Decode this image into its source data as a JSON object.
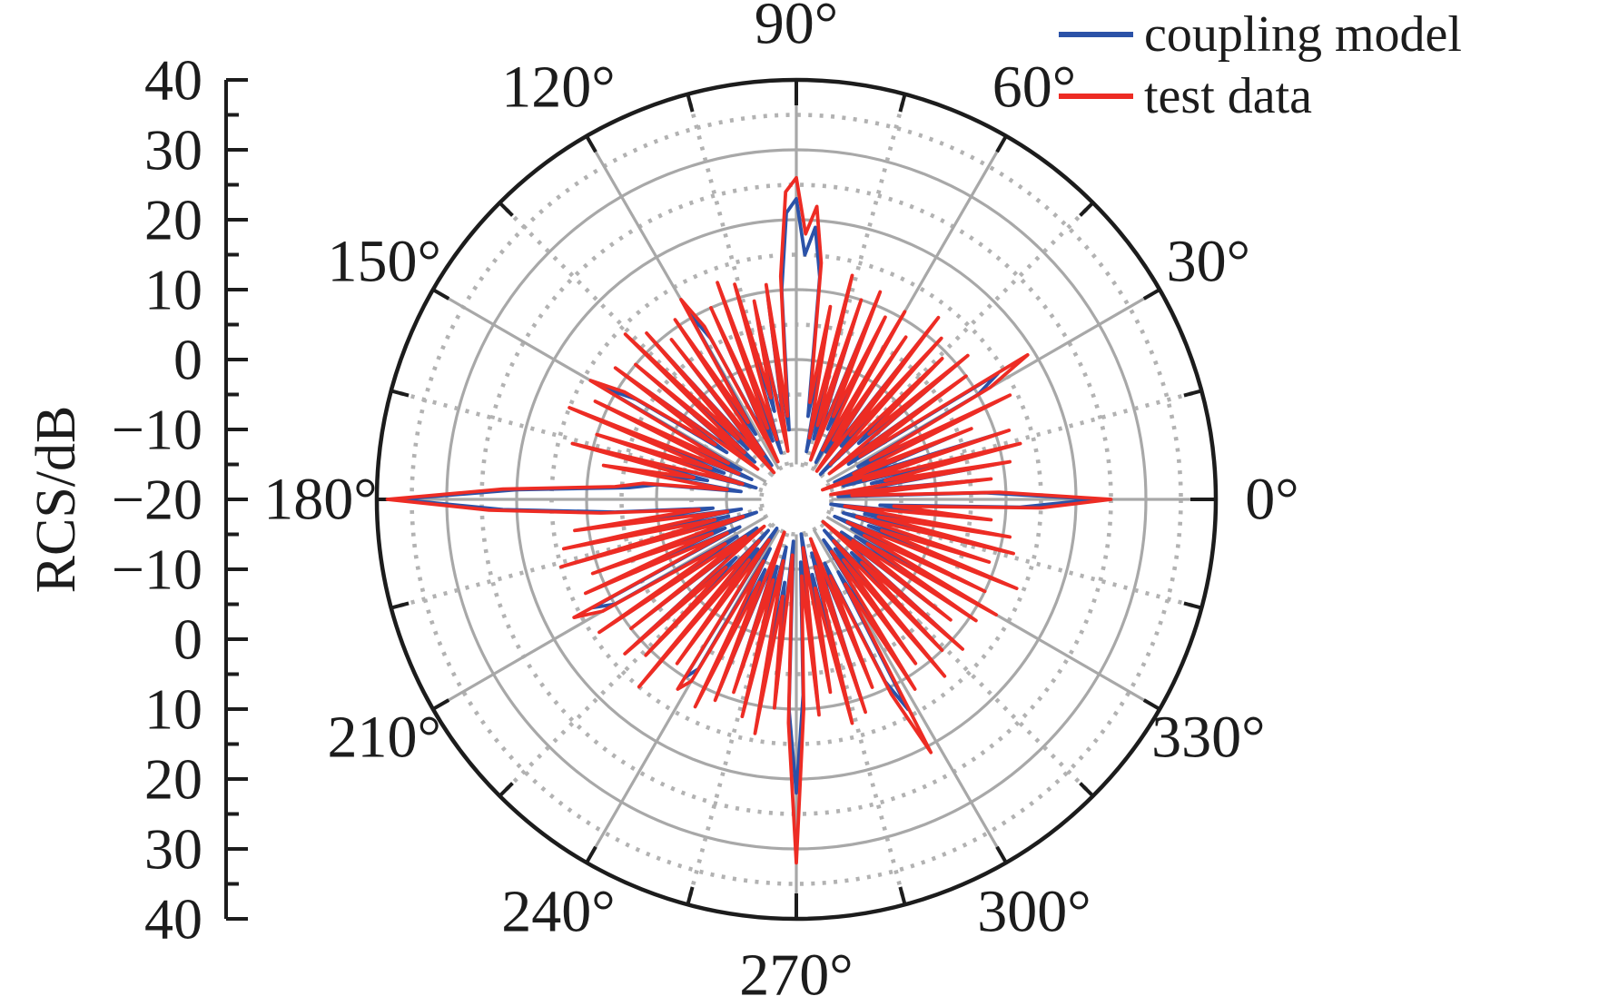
{
  "figure": {
    "background": "#ffffff"
  },
  "left_axis": {
    "label": "RCS/dB",
    "tick_labels": [
      "40",
      "30",
      "20",
      "10",
      "0",
      "−10",
      "−20",
      "−10",
      "0",
      "10",
      "20",
      "30",
      "40"
    ],
    "major_step_db": 10,
    "minor_step_db": 5
  },
  "polar": {
    "angle_labels": [
      "0°",
      "30°",
      "60°",
      "90°",
      "120°",
      "150°",
      "180°",
      "210°",
      "240°",
      "270°",
      "300°",
      "330°"
    ],
    "angle_tick_step_deg": 15,
    "spoke_solid_step_deg": 30,
    "spoke_dotted_step_deg": 15
  },
  "legend": {
    "items": [
      {
        "label": "coupling model",
        "color": "#2b52a8"
      },
      {
        "label": "test data",
        "color": "#ed2c24"
      }
    ]
  },
  "colors": {
    "grid_solid": "#a8a8a8",
    "grid_dotted": "#b2b2b2",
    "outline": "#1c1c1c",
    "text": "#1c1c1c",
    "series_blue": "#2b52a8",
    "series_red": "#ed2c24"
  },
  "chart_data": {
    "type": "line",
    "projection": "polar",
    "title": "",
    "radial_axis_label": "RCS/dB",
    "radial_range_db": [
      -20,
      40
    ],
    "radial_major_step_db": 10,
    "radial_minor_step_db": 5,
    "inner_hole_db": -15,
    "angle_start_deg": 0,
    "angle_step_deg": 2,
    "legend_position": "top-right",
    "grid": {
      "solid_circles_db": [
        -10,
        0,
        10,
        20,
        30
      ],
      "dotted_circles_db": [
        -15,
        -5,
        5,
        15,
        25,
        35
      ],
      "outer_circle_db": 40,
      "spokes_deg_step": 15
    },
    "series": [
      {
        "name": "coupling model",
        "color": "#2b52a8",
        "values": [
          23,
          7,
          -14,
          6,
          -12,
          9,
          -9,
          11,
          -13,
          10,
          -11,
          5,
          -14,
          12,
          -10,
          10,
          14,
          -11,
          8,
          -12,
          10,
          -8,
          7,
          -15,
          9,
          -10,
          11,
          -13,
          6,
          -12,
          9,
          -14,
          7,
          -9,
          10,
          -12,
          8,
          -11,
          11,
          -13,
          6,
          -8,
          12,
          19,
          15,
          23,
          21,
          10,
          -10,
          9,
          -11,
          7,
          -7,
          10,
          -13,
          11,
          -11,
          8,
          -12,
          6,
          11,
          -9,
          9,
          -14,
          7,
          -13,
          10,
          -10,
          12,
          -12,
          8,
          -11,
          10,
          -8,
          7,
          12,
          -11,
          10,
          -13,
          13,
          -9,
          8,
          -14,
          11,
          -7,
          6,
          -12,
          0,
          4,
          20,
          37,
          22,
          6,
          -8,
          10,
          -12,
          12,
          -10,
          13,
          -14,
          9,
          -9,
          11,
          -11,
          13,
          10,
          -10,
          12,
          -13,
          8,
          -12,
          11,
          -8,
          9,
          -14,
          13,
          -11,
          7,
          -15,
          10,
          8,
          -12,
          11,
          -9,
          9,
          -13,
          7,
          -10,
          10,
          -13,
          12,
          -8,
          8,
          -14,
          10,
          22,
          8,
          -11,
          9,
          -15,
          6,
          -9,
          11,
          -12,
          10,
          -12,
          7,
          -10,
          9,
          14,
          -8,
          10,
          -13,
          7,
          -11,
          11,
          -14,
          8,
          -9,
          10,
          -13,
          6,
          -12,
          9,
          -10,
          11,
          -11,
          8,
          -14,
          12,
          -9,
          7,
          -13,
          10,
          -10,
          9,
          -15,
          6,
          -8,
          12
        ]
      },
      {
        "name": "test data",
        "color": "#ed2c24",
        "values": [
          25,
          9,
          -12,
          8,
          -15,
          11,
          -7,
          13,
          -10,
          12,
          -16,
          7,
          -11,
          14,
          -8,
          12,
          19,
          -9,
          10,
          -14,
          12,
          -6,
          9,
          -13,
          11,
          -8,
          13,
          -15,
          8,
          -10,
          11,
          -12,
          9,
          -7,
          12,
          -14,
          10,
          -9,
          13,
          -11,
          8,
          -6,
          14,
          22,
          18,
          26,
          24,
          12,
          -8,
          11,
          -13,
          9,
          -5,
          12,
          -11,
          13,
          -9,
          10,
          -14,
          8,
          13,
          -7,
          11,
          -12,
          9,
          -15,
          12,
          -8,
          14,
          -10,
          10,
          -13,
          12,
          -6,
          9,
          14,
          -9,
          12,
          -11,
          15,
          -7,
          10,
          -12,
          13,
          -5,
          8,
          -10,
          2,
          6,
          22,
          38.5,
          24,
          8,
          -6,
          12,
          -10,
          14,
          -8,
          15,
          -12,
          11,
          -7,
          13,
          -9,
          16,
          12,
          -8,
          14,
          -11,
          10,
          -14,
          13,
          -6,
          11,
          -12,
          15,
          -9,
          9,
          -13,
          12,
          10,
          -10,
          13,
          -7,
          11,
          -15,
          9,
          -8,
          12,
          -11,
          14,
          -6,
          10,
          -12,
          12,
          32,
          10,
          -9,
          11,
          -13,
          8,
          -7,
          13,
          -10,
          12,
          -14,
          9,
          -8,
          11,
          21,
          -6,
          12,
          -11,
          9,
          -9,
          13,
          -12,
          10,
          -7,
          12,
          -15,
          8,
          -10,
          11,
          -8,
          13,
          -9,
          10,
          -12,
          14,
          -7,
          9,
          -11,
          12,
          -8,
          11,
          -13,
          8,
          -6,
          15
        ]
      }
    ]
  }
}
